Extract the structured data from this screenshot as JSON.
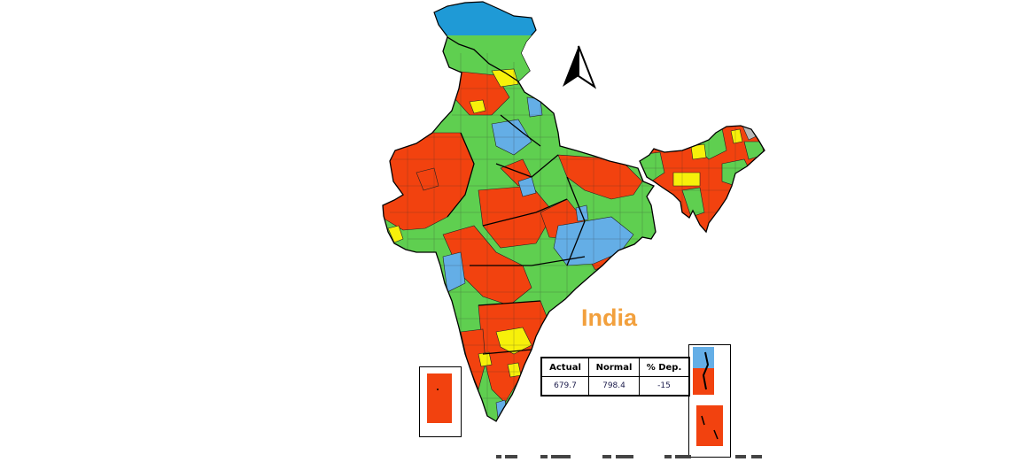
{
  "country_label": "India",
  "stats_table": {
    "headers": [
      "Actual",
      "Normal",
      "% Dep."
    ],
    "values": [
      "679.7",
      "798.4",
      "-15"
    ]
  },
  "category_colors": {
    "excess": "#1f9ad6",
    "normal": "#5fcf50",
    "deficient": "#f2420f",
    "large_deficient": "#f7f00a",
    "no_data": "#b8b8b8",
    "inset_blue": "#64aee6"
  },
  "north_arrow_icon": "north-arrow-icon"
}
